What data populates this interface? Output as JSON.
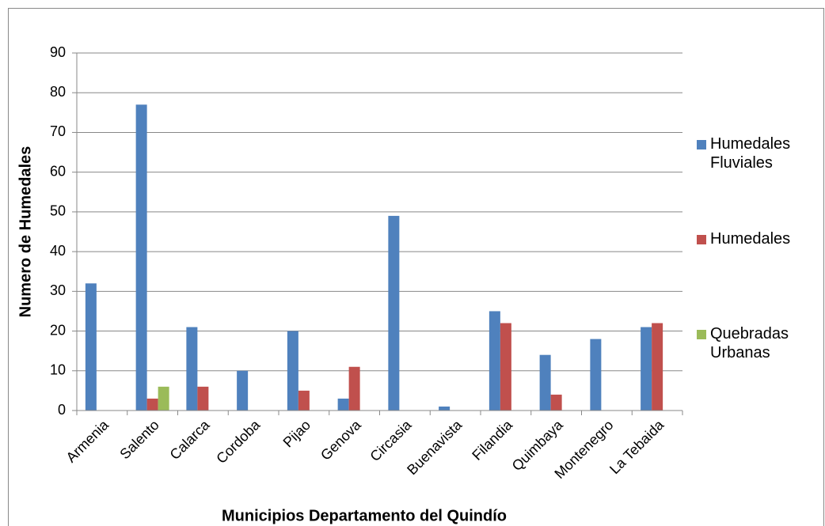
{
  "chart_data": {
    "type": "bar",
    "xlabel": "Municipios  Departamento del Quindío",
    "ylabel": "Numero de Humedales",
    "categories": [
      "Armenia",
      "Salento",
      "Calarca",
      "Cordoba",
      "Pijao",
      "Genova",
      "Circasia",
      "Buenavista",
      "Filandia",
      "Quimbaya",
      "Montenegro",
      "La Tebaida"
    ],
    "series": [
      {
        "name": "Humedales Fluviales",
        "color": "#4f81bd",
        "values": [
          32,
          77,
          21,
          10,
          20,
          3,
          49,
          1,
          25,
          14,
          18,
          21
        ]
      },
      {
        "name": "Humedales",
        "color": "#c0504d",
        "values": [
          0,
          3,
          6,
          0,
          5,
          11,
          0,
          0,
          22,
          4,
          0,
          22
        ]
      },
      {
        "name": "Quebradas Urbanas",
        "color": "#9bbb59",
        "values": [
          0,
          6,
          0,
          0,
          0,
          0,
          0,
          0,
          0,
          0,
          0,
          0
        ]
      }
    ],
    "ylim": [
      0,
      90
    ],
    "yticks": [
      0,
      10,
      20,
      30,
      40,
      50,
      60,
      70,
      80,
      90
    ],
    "grid": true,
    "legend": "right"
  }
}
